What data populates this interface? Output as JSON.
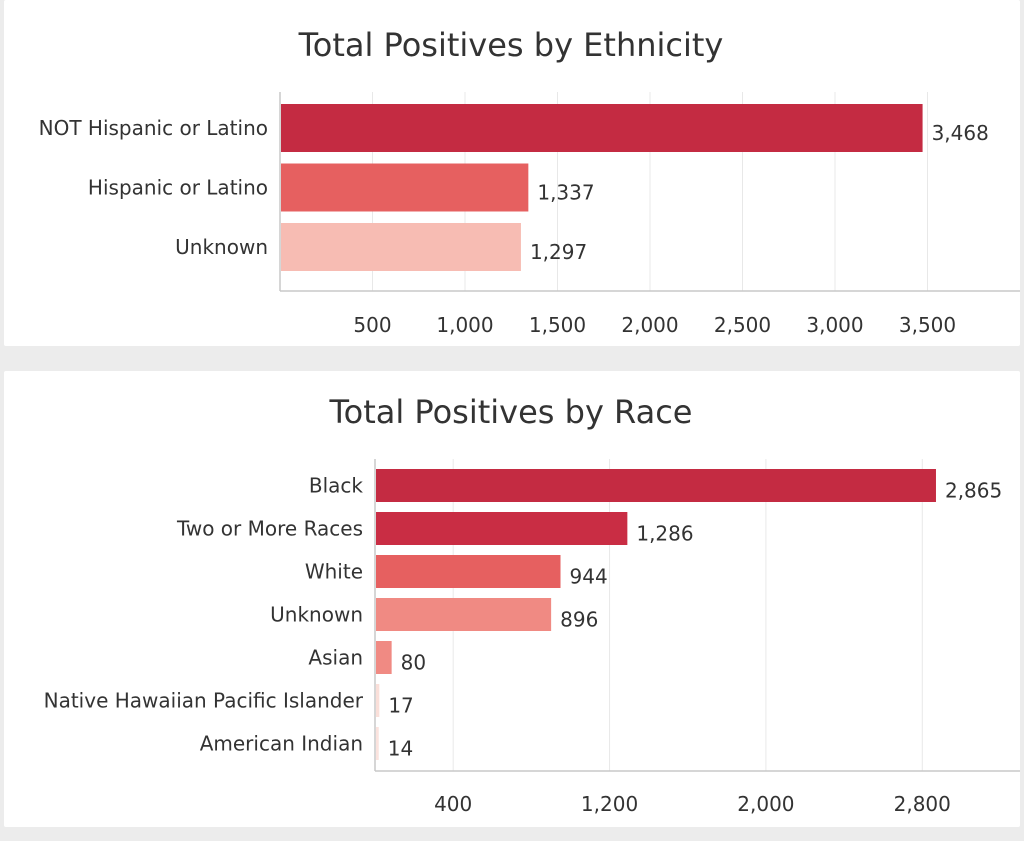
{
  "chart_data": [
    {
      "type": "bar",
      "orientation": "horizontal",
      "title": "Total Positives by Ethnicity",
      "categories": [
        "NOT Hispanic or Latino",
        "Hispanic or Latino",
        "Unknown"
      ],
      "values": [
        3468,
        1337,
        1297
      ],
      "value_labels": [
        "3,468",
        "1,337",
        "1,297"
      ],
      "bar_colors": [
        "#c42b42",
        "#e66060",
        "#f7bcb3"
      ],
      "xlim": [
        0,
        4000
      ],
      "xticks": [
        500,
        1000,
        1500,
        2000,
        2500,
        3000,
        3500
      ],
      "xtick_labels": [
        "500",
        "1,000",
        "1,500",
        "2,000",
        "2,500",
        "3,000",
        "3,500"
      ],
      "grid": true,
      "xlabel": "",
      "ylabel": ""
    },
    {
      "type": "bar",
      "orientation": "horizontal",
      "title": "Total Positives by Race",
      "categories": [
        "Black",
        "Two or More Races",
        "White",
        "Unknown",
        "Asian",
        "Native Hawaiian Pacific Islander",
        "American Indian"
      ],
      "values": [
        2865,
        1286,
        944,
        896,
        80,
        17,
        14
      ],
      "value_labels": [
        "2,865",
        "1,286",
        "944",
        "896",
        "80",
        "17",
        "14"
      ],
      "bar_colors": [
        "#c42b42",
        "#c92d44",
        "#e66060",
        "#f08a83",
        "#f08a83",
        "#fadfd9",
        "#fbe3de"
      ],
      "xlim": [
        0,
        3300
      ],
      "xticks": [
        400,
        1200,
        2000,
        2800
      ],
      "xtick_labels": [
        "400",
        "1,200",
        "2,000",
        "2,800"
      ],
      "grid": true,
      "xlabel": "",
      "ylabel": ""
    }
  ]
}
